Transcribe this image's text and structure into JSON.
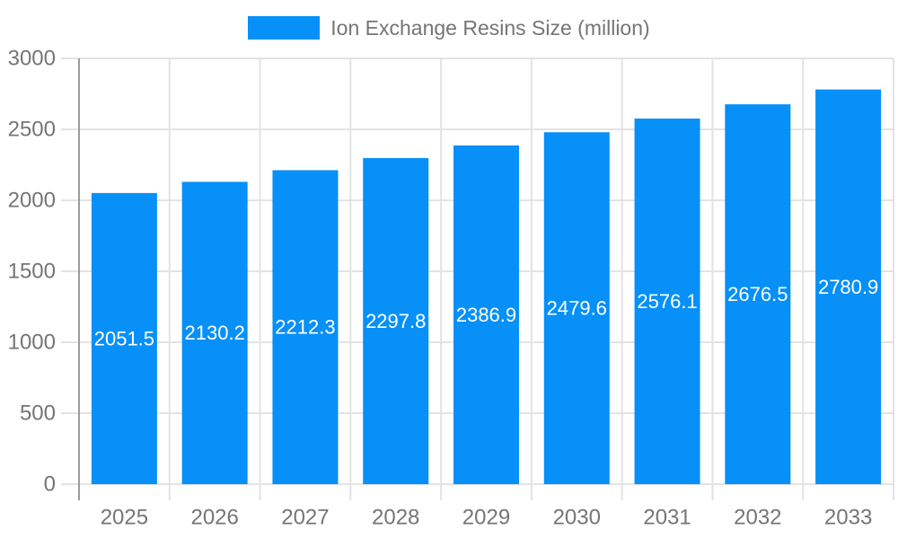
{
  "chart_data": {
    "type": "bar",
    "title": "Ion Exchange Resins Size (million)",
    "series_label": "Ion Exchange Resins Size (million)",
    "categories": [
      "2025",
      "2026",
      "2027",
      "2028",
      "2029",
      "2030",
      "2031",
      "2032",
      "2033"
    ],
    "values": [
      2051.5,
      2130.2,
      2212.3,
      2297.8,
      2386.9,
      2479.6,
      2576.1,
      2676.5,
      2780.9
    ],
    "xlabel": "",
    "ylabel": "",
    "ylim": [
      0,
      3000
    ],
    "yticks": [
      0,
      500,
      1000,
      1500,
      2000,
      2500,
      3000
    ],
    "grid": true,
    "legend_position": "top-center",
    "value_labels": "inside-middle",
    "colors": {
      "bar": "#0690F8",
      "axis_text": "#757575",
      "grid_line": "#E3E3E3",
      "axis_line": "#9B9B9B",
      "value_label": "#FFFFFF",
      "background": "#FFFFFF"
    }
  }
}
